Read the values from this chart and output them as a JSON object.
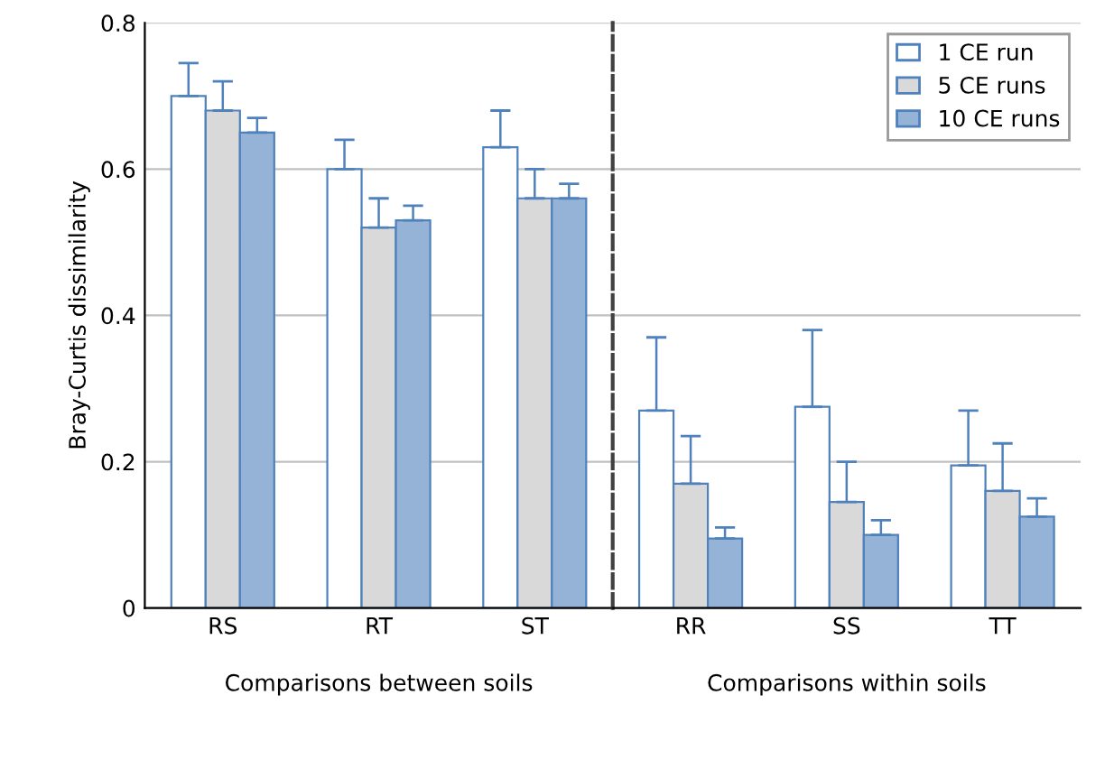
{
  "chart_data": [
    {
      "type": "bar",
      "ylabel": "Bray-Curtis dissimilarity",
      "xlabel": "Comparisons between soils",
      "categories": [
        "RS",
        "RT",
        "ST"
      ],
      "series": [
        {
          "color": "#ffffff",
          "values": [
            0.7,
            0.6,
            0.63
          ],
          "errors": [
            [
              0.7,
              0.745
            ],
            [
              0.6,
              0.64
            ],
            [
              0.63,
              0.68
            ]
          ]
        },
        {
          "color": "#d9d9d9",
          "values": [
            0.68,
            0.52,
            0.56
          ],
          "errors": [
            [
              0.68,
              0.72
            ],
            [
              0.52,
              0.56
            ],
            [
              0.56,
              0.6
            ]
          ]
        },
        {
          "color": "#95b3d7",
          "values": [
            0.65,
            0.53,
            0.56
          ],
          "errors": [
            [
              0.65,
              0.67
            ],
            [
              0.53,
              0.55
            ],
            [
              0.56,
              0.58
            ]
          ]
        }
      ],
      "ylim": [
        0,
        0.8
      ],
      "yticks": [
        0,
        {
          "value": 0.2,
          "label": "0.2"
        },
        {
          "value": 0.4,
          "label": "0.4"
        },
        {
          "value": 0.6,
          "label": "0.6"
        },
        {
          "value": 0.8,
          "label": "0.8"
        }
      ],
      "grid": "y"
    },
    {
      "type": "bar",
      "xlabel": "Comparisons within soils",
      "categories": [
        "RR",
        "SS",
        "TT"
      ],
      "series": [
        {
          "name": "1 CE run",
          "color": "#ffffff",
          "values": [
            0.27,
            0.275,
            0.195
          ],
          "errors": [
            [
              0.27,
              0.37
            ],
            [
              0.275,
              0.38
            ],
            [
              0.195,
              0.27
            ]
          ]
        },
        {
          "name": "5 CE runs",
          "color": "#d9d9d9",
          "values": [
            0.17,
            0.145,
            0.16
          ],
          "errors": [
            [
              0.17,
              0.235
            ],
            [
              0.145,
              0.2
            ],
            [
              0.16,
              0.225
            ]
          ]
        },
        {
          "name": "10 CE runs",
          "color": "#95b3d7",
          "values": [
            0.095,
            0.1,
            0.125
          ],
          "errors": [
            [
              0.095,
              0.11
            ],
            [
              0.1,
              0.12
            ],
            [
              0.125,
              0.15
            ]
          ]
        }
      ],
      "ylim": [
        0,
        0.8
      ],
      "yticks": [
        0,
        0.2,
        0.4,
        0.6,
        0.8
      ],
      "tick_labels": "x",
      "grid": "y",
      "legend": "top right"
    }
  ]
}
